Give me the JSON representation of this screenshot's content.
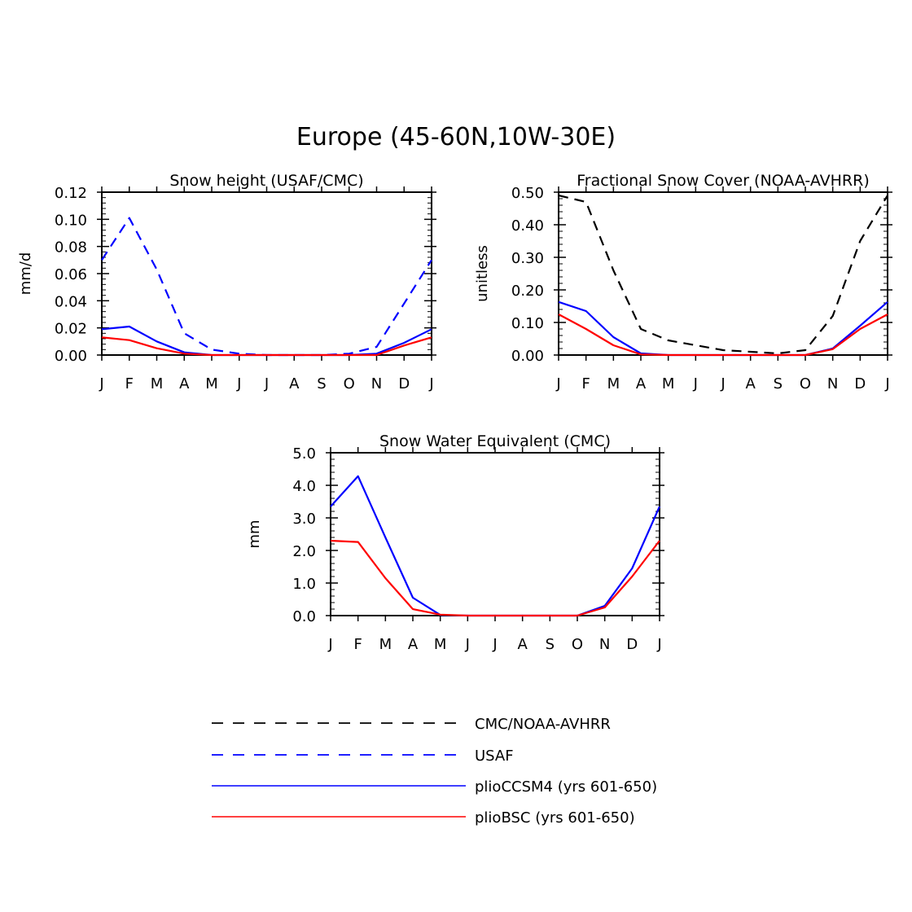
{
  "figure": {
    "title": "Europe (45-60N,10W-30E)"
  },
  "months": [
    "J",
    "F",
    "M",
    "A",
    "M",
    "J",
    "J",
    "A",
    "S",
    "O",
    "N",
    "D",
    "J"
  ],
  "colors": {
    "obs": "#000000",
    "usaf": "#0000ff",
    "ccsm4": "#0000ff",
    "bsc": "#ff0000"
  },
  "chart_data": [
    {
      "type": "line",
      "title": "Snow height (USAF/CMC)",
      "xlabel": "",
      "ylabel": "mm/d",
      "categories": [
        "J",
        "F",
        "M",
        "A",
        "M",
        "J",
        "J",
        "A",
        "S",
        "O",
        "N",
        "D",
        "J"
      ],
      "ylim": [
        0,
        0.12
      ],
      "yticks": [
        "0.00",
        "0.02",
        "0.04",
        "0.06",
        "0.08",
        "0.10",
        "0.12"
      ],
      "series": [
        {
          "name": "USAF",
          "style": "dashed",
          "color": "#0000ff",
          "values": [
            0.07,
            0.101,
            0.063,
            0.016,
            0.004,
            0.001,
            0.0,
            0.0,
            0.0,
            0.001,
            0.006,
            0.038,
            0.07
          ]
        },
        {
          "name": "plioCCSM4 (yrs 601-650)",
          "style": "solid",
          "color": "#0000ff",
          "values": [
            0.019,
            0.021,
            0.01,
            0.002,
            0.0,
            0.0,
            0.0,
            0.0,
            0.0,
            0.0,
            0.001,
            0.009,
            0.019
          ]
        },
        {
          "name": "plioBSC (yrs 601-650)",
          "style": "solid",
          "color": "#ff0000",
          "values": [
            0.013,
            0.011,
            0.005,
            0.001,
            0.0,
            0.0,
            0.0,
            0.0,
            0.0,
            0.0,
            0.0,
            0.007,
            0.013
          ]
        }
      ]
    },
    {
      "type": "line",
      "title": "Fractional Snow Cover (NOAA-AVHRR)",
      "xlabel": "",
      "ylabel": "unitless",
      "categories": [
        "J",
        "F",
        "M",
        "A",
        "M",
        "J",
        "J",
        "A",
        "S",
        "O",
        "N",
        "D",
        "J"
      ],
      "ylim": [
        0,
        0.5
      ],
      "yticks": [
        "0.00",
        "0.10",
        "0.20",
        "0.30",
        "0.40",
        "0.50"
      ],
      "series": [
        {
          "name": "CMC/NOAA-AVHRR",
          "style": "dashed",
          "color": "#000000",
          "values": [
            0.49,
            0.47,
            0.26,
            0.08,
            0.045,
            0.03,
            0.015,
            0.01,
            0.005,
            0.015,
            0.12,
            0.35,
            0.49
          ]
        },
        {
          "name": "plioCCSM4 (yrs 601-650)",
          "style": "solid",
          "color": "#0000ff",
          "values": [
            0.163,
            0.135,
            0.055,
            0.005,
            0.0,
            0.0,
            0.0,
            0.0,
            0.0,
            0.0,
            0.02,
            0.09,
            0.163
          ]
        },
        {
          "name": "plioBSC (yrs 601-650)",
          "style": "solid",
          "color": "#ff0000",
          "values": [
            0.125,
            0.08,
            0.03,
            0.002,
            0.0,
            0.0,
            0.0,
            0.0,
            0.0,
            0.0,
            0.018,
            0.08,
            0.125
          ]
        }
      ]
    },
    {
      "type": "line",
      "title": "Snow Water Equivalent (CMC)",
      "xlabel": "",
      "ylabel": "mm",
      "categories": [
        "J",
        "F",
        "M",
        "A",
        "M",
        "J",
        "J",
        "A",
        "S",
        "O",
        "N",
        "D",
        "J"
      ],
      "ylim": [
        0,
        5
      ],
      "yticks": [
        "0.0",
        "1.0",
        "2.0",
        "3.0",
        "4.0",
        "5.0"
      ],
      "series": [
        {
          "name": "plioCCSM4 (yrs 601-650)",
          "style": "solid",
          "color": "#0000ff",
          "values": [
            3.35,
            4.28,
            2.4,
            0.55,
            0.02,
            0.0,
            0.0,
            0.0,
            0.0,
            0.0,
            0.3,
            1.45,
            3.35
          ]
        },
        {
          "name": "plioBSC (yrs 601-650)",
          "style": "solid",
          "color": "#ff0000",
          "values": [
            2.3,
            2.26,
            1.15,
            0.2,
            0.03,
            0.0,
            0.0,
            0.0,
            0.0,
            0.0,
            0.25,
            1.2,
            2.3
          ]
        }
      ]
    }
  ],
  "legend": [
    {
      "label": "CMC/NOAA-AVHRR",
      "style": "dashed",
      "color": "#000000"
    },
    {
      "label": "USAF",
      "style": "dashed",
      "color": "#0000ff"
    },
    {
      "label": "plioCCSM4 (yrs 601-650)",
      "style": "solid",
      "color": "#0000ff"
    },
    {
      "label": "plioBSC (yrs 601-650)",
      "style": "solid",
      "color": "#ff0000"
    }
  ]
}
